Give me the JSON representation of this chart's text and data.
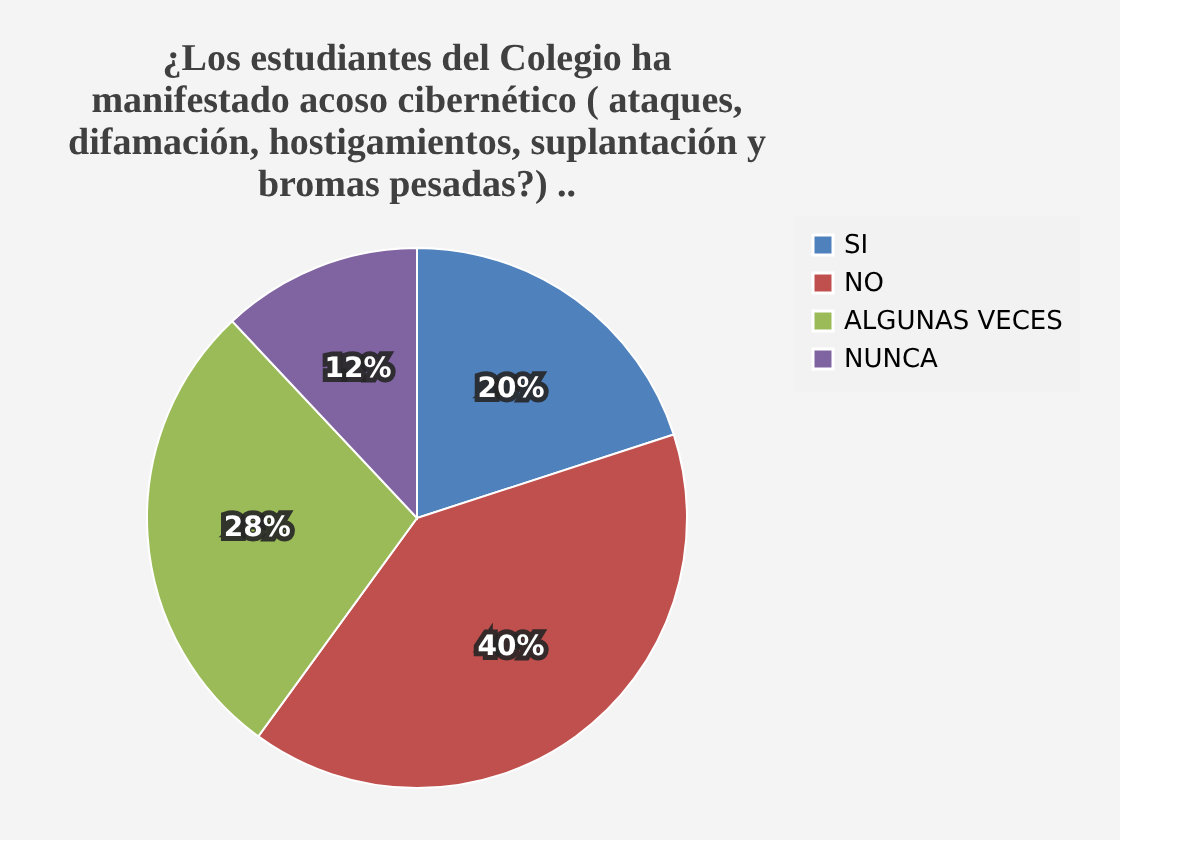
{
  "chart_data": {
    "type": "pie",
    "title": "¿Los estudiantes del Colegio ha manifestado acoso cibernético ( ataques, difamación, hostigamientos, suplantación y bromas pesadas?) ..",
    "categories": [
      "SI",
      "NO",
      "ALGUNAS VECES",
      "NUNCA"
    ],
    "values": [
      20,
      40,
      28,
      12
    ],
    "colors": [
      "#4f81bd",
      "#c0504d",
      "#9bbb59",
      "#8064a2"
    ],
    "value_labels": [
      "20%",
      "40%",
      "28%",
      "12%"
    ],
    "legend": "right"
  }
}
